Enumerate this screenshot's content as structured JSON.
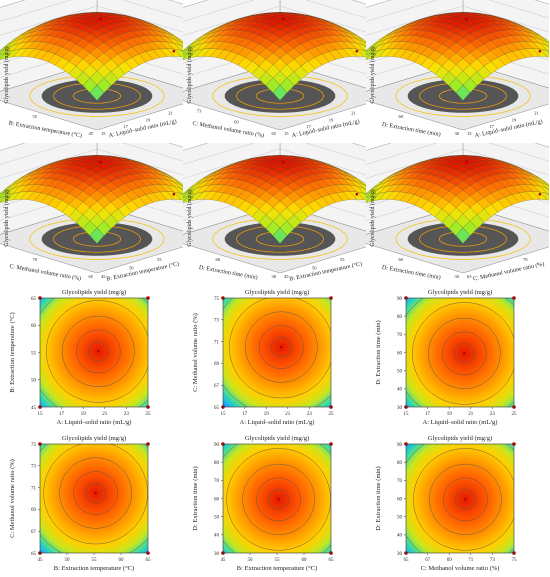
{
  "chart_data": [
    {
      "type": "surface3d",
      "zlabel": "Glycolipids yield (mg/g)",
      "xlabel": "A: Liquid–solid ratio (mL/g)",
      "ylabel": "B: Extraction temperature (°C)",
      "x_ticks": [
        "15",
        "17",
        "19",
        "21",
        "23",
        "25"
      ],
      "y_ticks": [
        "45",
        "55",
        "65"
      ],
      "z_ticks": [
        "120",
        "140",
        "160",
        "180",
        "200",
        "220",
        "240"
      ],
      "zlim": [
        120,
        240
      ],
      "peak": {
        "x": 20.4,
        "y": 55.2,
        "z": 231
      }
    },
    {
      "type": "surface3d",
      "zlabel": "Glycolipids yield (mg/g)",
      "xlabel": "A: Liquid–solid ratio (mL/g)",
      "ylabel": "C: Methanol volume ratio (%)",
      "x_ticks": [
        "15",
        "17",
        "19",
        "21",
        "23",
        "25"
      ],
      "y_ticks": [
        "65",
        "69",
        "73",
        "75"
      ],
      "z_ticks": [
        "120",
        "140",
        "160",
        "180",
        "200",
        "220",
        "240"
      ],
      "zlim": [
        120,
        240
      ],
      "peak": {
        "x": 20.4,
        "y": 70.5,
        "z": 231
      }
    },
    {
      "type": "surface3d",
      "zlabel": "Glycolipids yield (mg/g)",
      "xlabel": "A: Liquid–solid ratio (mL/g)",
      "ylabel": "D: Extraction time (min)",
      "x_ticks": [
        "15",
        "17",
        "19",
        "21",
        "23",
        "25"
      ],
      "y_ticks": [
        "30",
        "60",
        "90"
      ],
      "z_ticks": [
        "120",
        "140",
        "160",
        "180",
        "200",
        "220",
        "240"
      ],
      "zlim": [
        120,
        240
      ],
      "peak": {
        "x": 20.4,
        "y": 59.5,
        "z": 231
      }
    },
    {
      "type": "surface3d",
      "zlabel": "Glycolipids yield (mg/g)",
      "xlabel": "B: Extraction temperature (°C)",
      "ylabel": "C: Methanol volume ratio (%)",
      "x_ticks": [
        "45",
        "50",
        "55",
        "60",
        "65"
      ],
      "y_ticks": [
        "65",
        "70",
        "75"
      ],
      "z_ticks": [
        "120",
        "140",
        "160",
        "180",
        "200",
        "220",
        "240"
      ],
      "zlim": [
        120,
        240
      ],
      "peak": {
        "x": 55.3,
        "y": 70.5,
        "z": 231
      }
    },
    {
      "type": "surface3d",
      "zlabel": "Glycolipids yield (mg/g)",
      "xlabel": "B: Extraction temperature (°C)",
      "ylabel": "D: Extraction time (min)",
      "x_ticks": [
        "45",
        "50",
        "55",
        "60",
        "65"
      ],
      "y_ticks": [
        "30",
        "60",
        "90"
      ],
      "z_ticks": [
        "120",
        "140",
        "160",
        "180",
        "200",
        "220",
        "240"
      ],
      "zlim": [
        120,
        240
      ],
      "peak": {
        "x": 55.3,
        "y": 59.5,
        "z": 231
      }
    },
    {
      "type": "surface3d",
      "zlabel": "Glycolipids yield (mg/g)",
      "xlabel": "C: Methanol volume ratio (%)",
      "ylabel": "D: Extraction time (min)",
      "x_ticks": [
        "65",
        "70",
        "75"
      ],
      "y_ticks": [
        "30",
        "60",
        "90"
      ],
      "z_ticks": [
        "120",
        "140",
        "160",
        "180",
        "200",
        "220",
        "240"
      ],
      "zlim": [
        120,
        240
      ],
      "peak": {
        "x": 70.5,
        "y": 59.5,
        "z": 231
      }
    },
    {
      "type": "heatmap",
      "title": "Glycolipids yield (mg/g)",
      "xlabel": "A: Liquid–solid ratio (mL/g)",
      "ylabel": "B: Extraction temperature (°C)",
      "x_ticks": [
        "15",
        "17",
        "19",
        "21",
        "23",
        "25"
      ],
      "y_ticks": [
        "45",
        "50",
        "55",
        "60",
        "65"
      ],
      "xlim": [
        15,
        25
      ],
      "ylim": [
        45,
        65
      ],
      "optimum": {
        "x": 20.4,
        "y": 55.2
      }
    },
    {
      "type": "heatmap",
      "title": "Glycolipids yield (mg/g)",
      "xlabel": "A: Liquid–solid ratio (mL/g)",
      "ylabel": "C: Methanol volume ratio (%)",
      "x_ticks": [
        "15",
        "17",
        "19",
        "21",
        "23",
        "25"
      ],
      "y_ticks": [
        "65",
        "67",
        "69",
        "71",
        "73",
        "75"
      ],
      "xlim": [
        15,
        25
      ],
      "ylim": [
        65,
        75
      ],
      "optimum": {
        "x": 20.4,
        "y": 70.5
      }
    },
    {
      "type": "heatmap",
      "title": "Glycolipids yield (mg/g)",
      "xlabel": "A: Liquid–solid ratio (mL/g)",
      "ylabel": "D: Extraction time (min)",
      "x_ticks": [
        "15",
        "17",
        "19",
        "21",
        "23",
        "25"
      ],
      "y_ticks": [
        "30",
        "40",
        "50",
        "60",
        "70",
        "80",
        "90"
      ],
      "xlim": [
        15,
        25
      ],
      "ylim": [
        30,
        90
      ],
      "optimum": {
        "x": 20.4,
        "y": 59.5
      }
    },
    {
      "type": "heatmap",
      "title": "Glycolipids yield (mg/g)",
      "xlabel": "B: Extraction temperature (°C)",
      "ylabel": "C: Methanol volume ratio (%)",
      "x_ticks": [
        "45",
        "50",
        "55",
        "60",
        "65"
      ],
      "y_ticks": [
        "65",
        "67",
        "69",
        "71",
        "73",
        "75"
      ],
      "xlim": [
        45,
        65
      ],
      "ylim": [
        65,
        75
      ],
      "optimum": {
        "x": 55.3,
        "y": 70.5
      }
    },
    {
      "type": "heatmap",
      "title": "Glycolipids yield (mg/g)",
      "xlabel": "B: Extraction temperature (°C)",
      "ylabel": "D: Extraction time (min)",
      "x_ticks": [
        "45",
        "50",
        "55",
        "60",
        "65"
      ],
      "y_ticks": [
        "30",
        "40",
        "50",
        "60",
        "70",
        "80",
        "90"
      ],
      "xlim": [
        45,
        65
      ],
      "ylim": [
        30,
        90
      ],
      "optimum": {
        "x": 55.3,
        "y": 59.5
      }
    },
    {
      "type": "heatmap",
      "title": "Glycolipids yield (mg/g)",
      "xlabel": "C: Methanol volume ratio (%)",
      "ylabel": "D: Extraction time (min)",
      "x_ticks": [
        "65",
        "67",
        "69",
        "71",
        "73",
        "75"
      ],
      "y_ticks": [
        "30",
        "40",
        "50",
        "60",
        "70",
        "80",
        "90"
      ],
      "xlim": [
        65,
        75
      ],
      "ylim": [
        30,
        90
      ],
      "optimum": {
        "x": 70.5,
        "y": 59.5
      }
    }
  ]
}
